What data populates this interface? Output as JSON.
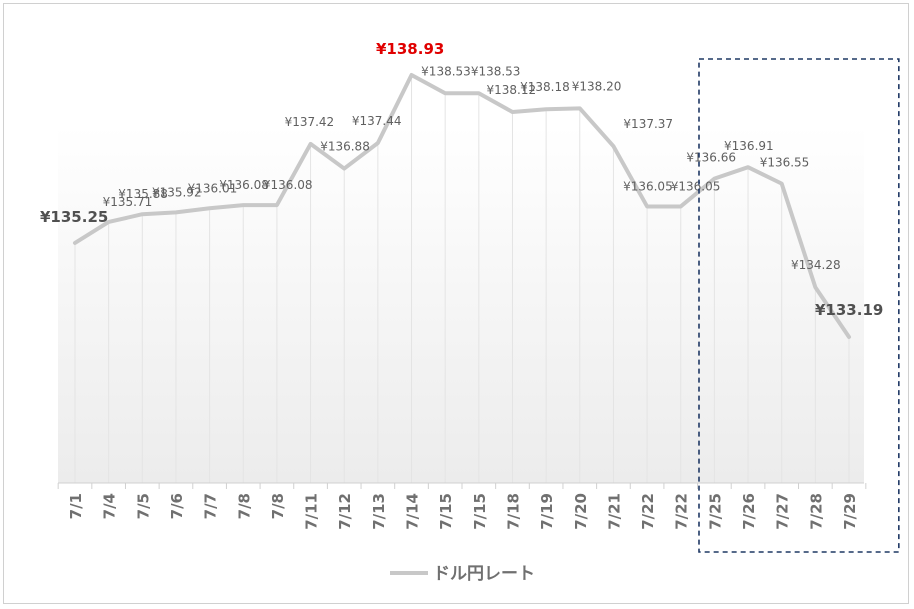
{
  "chart_data": {
    "type": "line",
    "categories": [
      "7/1",
      "7/4",
      "7/5",
      "7/6",
      "7/7",
      "7/8",
      "7/8",
      "7/11",
      "7/12",
      "7/13",
      "7/14",
      "7/15",
      "7/15",
      "7/18",
      "7/19",
      "7/20",
      "7/21",
      "7/22",
      "7/22",
      "7/25",
      "7/26",
      "7/27",
      "7/28",
      "7/29"
    ],
    "series": [
      {
        "name": "ドル円レート",
        "color": "#c8c8c8",
        "values": [
          135.25,
          135.71,
          135.88,
          135.92,
          136.01,
          136.08,
          136.08,
          137.42,
          136.88,
          137.44,
          138.93,
          138.53,
          138.53,
          138.12,
          138.18,
          138.2,
          137.37,
          136.05,
          136.05,
          136.66,
          136.91,
          136.55,
          134.28,
          133.19
        ],
        "labels": [
          "¥135.25",
          "¥135.71",
          "¥135.88",
          "¥135.92",
          "¥136.01",
          "¥136.08",
          "¥136.08",
          "¥137.42",
          "¥136.88",
          "¥137.44",
          "¥138.93",
          "¥138.53",
          "¥138.53",
          "¥138.12",
          "¥138.18",
          "¥138.20",
          "¥137.37",
          "¥136.05",
          "¥136.05",
          "¥136.66",
          "¥136.91",
          "¥136.55",
          "¥134.28",
          "¥133.19"
        ]
      }
    ],
    "ylim": [
      128.0,
      140.0
    ],
    "highlight_box": {
      "from_index": 19,
      "to_index": 23,
      "color": "#1f3864"
    },
    "emphasis": {
      "first": 0,
      "max": 10,
      "last": 23,
      "max_color": "#e00000"
    },
    "legend": "bottom",
    "grid": "vertical-drop-lines"
  }
}
